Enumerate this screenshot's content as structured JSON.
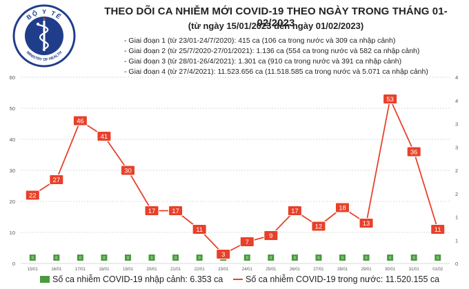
{
  "header": {
    "title": "THEO DÕI CA NHIỄM MỚI COVID-19 THEO NGÀY TRONG THÁNG 01-02/2023",
    "subtitle": "(từ ngày 15/01/2023 đến ngày 01/02/2023)",
    "phases": [
      "- Giai đoạn 1 (từ 23/01-24/7/2020): 415 ca (106 ca trong nước và 309 ca nhập cảnh)",
      "- Giai đoạn 2 (từ 25/7/2020-27/01/2021): 1.136 ca (554 ca trong nước và 582 ca nhập cảnh)",
      "- Giai đoạn 3 (từ 28/01-26/4/2021): 1.301 ca (910 ca trong nước và 391 ca nhập cảnh)",
      "- Giai đoạn 4 (từ 27/4/2021): 11.523.656 ca (11.518.585 ca trong nước và 5.071 ca nhập cảnh)"
    ]
  },
  "logo": {
    "text": "BỘ Y TẾ",
    "sub_text": "MINISTRY OF HEALTH"
  },
  "colors": {
    "domestic_line": "#e8402a",
    "imported_bar": "#4a9a3f",
    "label_bg": "#e8402a",
    "grid": "#d9d9d9"
  },
  "legend": {
    "imported": "Số ca nhiễm COVID-19 nhập cảnh: 6.353 ca",
    "domestic": "Số ca nhiễm COVID-19 trong nước: 11.520.155 ca"
  },
  "chart_data": {
    "type": "line",
    "categories": [
      "15/01",
      "16/01",
      "17/01",
      "18/01",
      "19/01",
      "20/01",
      "21/01",
      "22/01",
      "23/01",
      "24/01",
      "25/01",
      "26/01",
      "27/01",
      "28/01",
      "29/01",
      "30/01",
      "31/01",
      "01/02"
    ],
    "series": [
      {
        "name": "Số ca nhiễm COVID-19 trong nước",
        "axis": "left",
        "style": "line",
        "values": [
          22,
          27,
          46,
          41,
          30,
          17,
          17,
          11,
          3,
          7,
          9,
          17,
          12,
          18,
          13,
          53,
          36,
          11
        ]
      },
      {
        "name": "Số ca nhiễm COVID-19 nhập cảnh",
        "axis": "right",
        "style": "bar",
        "values": [
          0,
          0,
          0,
          0,
          0,
          0,
          0,
          0,
          0,
          0,
          0,
          0,
          0,
          0,
          0,
          0,
          0,
          0
        ]
      }
    ],
    "ylim_left": [
      0,
      60
    ],
    "yticks_left": [
      0,
      10,
      20,
      30,
      40,
      50,
      60
    ],
    "ylim_right": [
      0,
      4
    ],
    "yticks_right_labels": [
      "0",
      "1",
      "1",
      "2",
      "2",
      "3",
      "3",
      "4",
      "4"
    ],
    "grid": true,
    "legend_position": "bottom"
  }
}
